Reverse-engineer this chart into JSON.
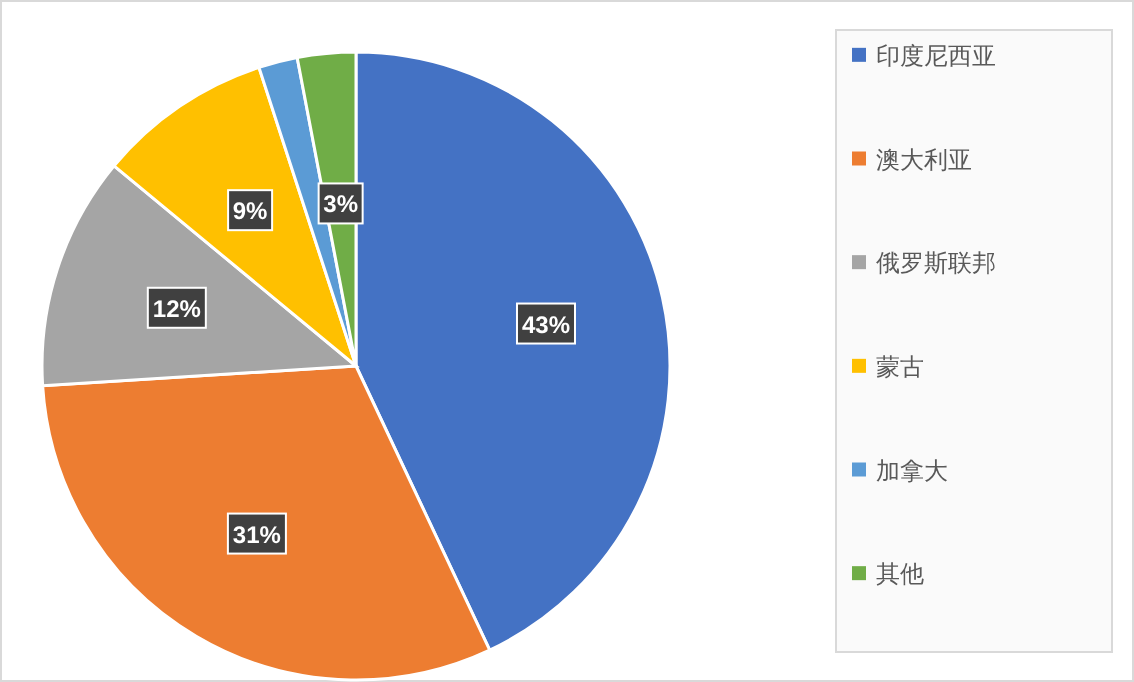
{
  "chart_data": {
    "type": "pie",
    "categories": [
      "印度尼西亚",
      "澳大利亚",
      "俄罗斯联邦",
      "蒙古",
      "加拿大",
      "其他"
    ],
    "values": [
      43,
      31,
      12,
      9,
      2,
      3
    ],
    "colors": [
      "#4472c4",
      "#ed7d31",
      "#a5a5a5",
      "#ffc000",
      "#5b9bd5",
      "#70ad47"
    ],
    "value_labels": [
      "43%",
      "31%",
      "12%",
      "9%",
      null,
      "3%"
    ],
    "legend": "right"
  }
}
